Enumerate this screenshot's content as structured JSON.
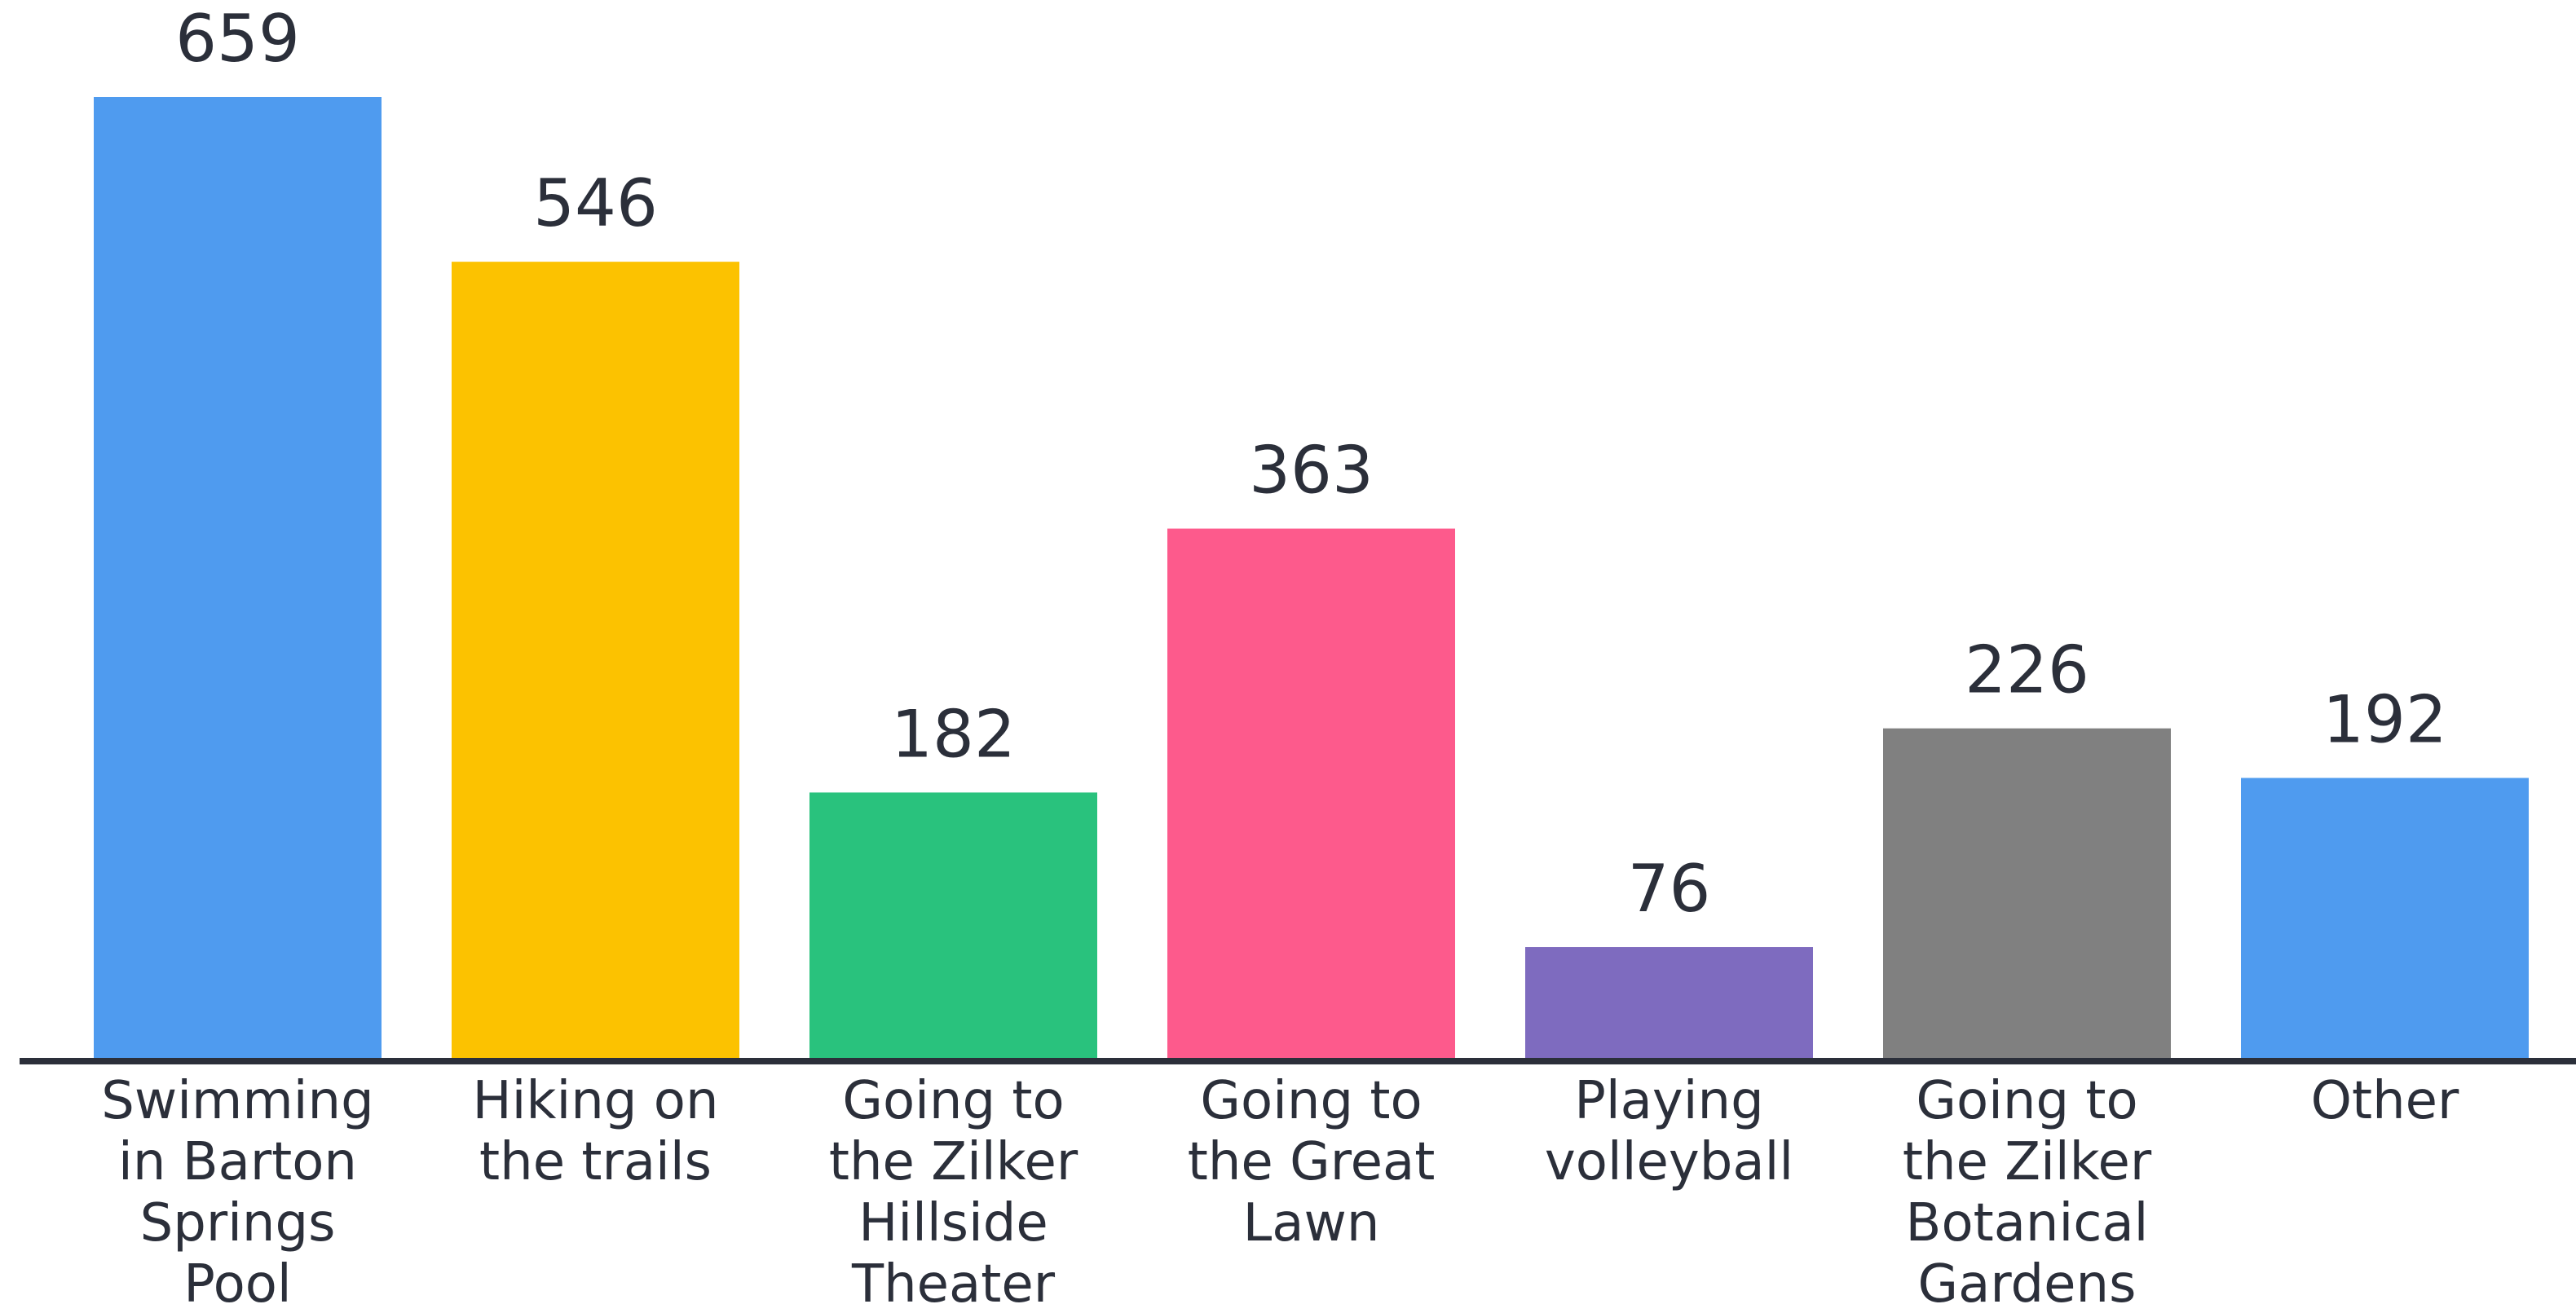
{
  "chart_data": {
    "type": "bar",
    "categories": [
      "Swimming in Barton Springs Pool",
      "Hiking on the trails",
      "Going to the Zilker Hillside Theater",
      "Going to the Great Lawn",
      "Playing volleyball",
      "Going to the Zilker Botanical Gardens",
      "Other"
    ],
    "values": [
      659,
      546,
      182,
      363,
      76,
      226,
      192
    ],
    "colors": [
      "#4f9bef",
      "#fcc200",
      "#29c27d",
      "#fd5a8c",
      "#7e6bbf",
      "#808080",
      "#4f9bef"
    ]
  }
}
